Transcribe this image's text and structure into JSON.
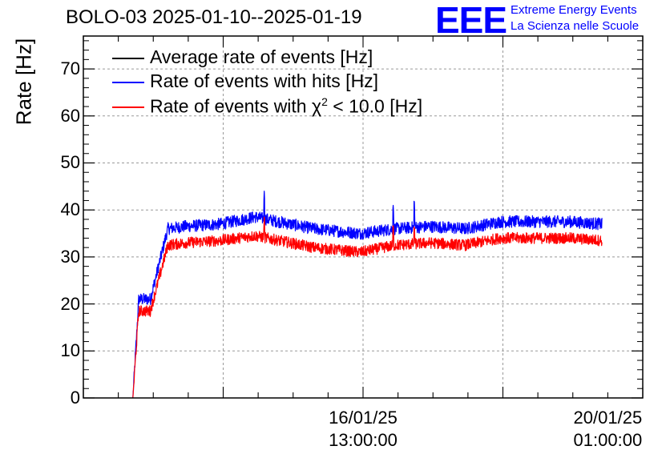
{
  "title": "BOLO-03 2025-01-10--2025-01-19",
  "logo": {
    "mark": "EEE",
    "line1": "Extreme Energy Events",
    "line2": "La Scienza nelle Scuole"
  },
  "chart_data": {
    "type": "line",
    "title": "BOLO-03 2025-01-10--2025-01-19",
    "xlabel": "",
    "ylabel": "Rate [Hz]",
    "ylim": [
      0,
      77
    ],
    "yticks": [
      0,
      10,
      20,
      30,
      40,
      50,
      60,
      70
    ],
    "xticks": [
      {
        "date": "16/01/25",
        "time": "13:00:00"
      },
      {
        "date": "20/01/25",
        "time": "01:00:00"
      }
    ],
    "grid": true,
    "legend": {
      "placement": "top-left",
      "entries": [
        {
          "name_prefix": "Average rate of events [Hz]",
          "sup": "",
          "name_suffix": "",
          "color": "#000000"
        },
        {
          "name_prefix": "Rate of events with hits [Hz]",
          "sup": "",
          "name_suffix": "",
          "color": "#0000ff"
        },
        {
          "name_prefix": "Rate of events with χ",
          "sup": "2",
          "name_suffix": " < 10.0 [Hz]",
          "color": "#ff0000"
        }
      ]
    },
    "x": [
      "2025-01-13 06:00",
      "2025-01-13 08:00",
      "2025-01-13 12:00",
      "2025-01-13 18:00",
      "2025-01-14 00:00",
      "2025-01-14 12:00",
      "2025-01-15 00:00",
      "2025-01-15 12:00",
      "2025-01-15 20:00",
      "2025-01-16 04:00",
      "2025-01-16 12:00",
      "2025-01-17 00:00",
      "2025-01-17 12:00",
      "2025-01-18 00:00",
      "2025-01-18 12:00",
      "2025-01-19 00:00",
      "2025-01-19 12:00",
      "2025-01-19 23:00"
    ],
    "series": [
      {
        "name": "Rate of events with hits [Hz]",
        "color": "#0000ff",
        "values": [
          0,
          21,
          21,
          36,
          36.5,
          37,
          38.5,
          37,
          36,
          35.5,
          35,
          36,
          36.5,
          36,
          37.5,
          37.5,
          37.5,
          37
        ]
      },
      {
        "name": "Rate of events with χ2 < 10.0 [Hz]",
        "color": "#ff0000",
        "values": [
          0,
          18.5,
          18.5,
          32.5,
          33,
          33.5,
          34.5,
          33,
          32,
          31.5,
          31,
          32.5,
          33,
          32.5,
          34,
          34,
          34,
          33.5
        ]
      }
    ]
  }
}
